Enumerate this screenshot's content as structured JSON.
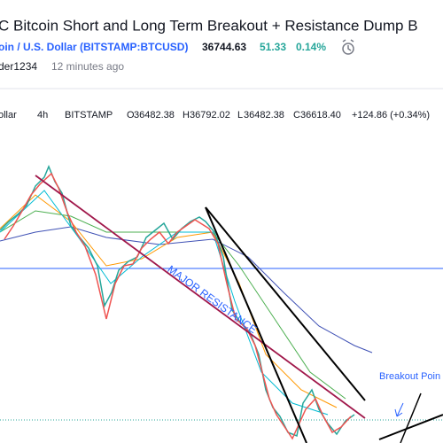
{
  "header": {
    "title": "C Bitcoin Short and Long Term Breakout + Resistance Dump B",
    "symbol": "oin / U.S. Dollar (BITSTAMP:BTCUSD)",
    "price": "36744.63",
    "change": "51.33",
    "change_pct": "0.14%",
    "author": "der1234",
    "time": "12 minutes ago"
  },
  "legend": {
    "symbol": "ollar",
    "interval": "4h",
    "exchange": "BITSTAMP",
    "open_label": "O",
    "open": "36482.38",
    "high_label": "H",
    "high": "36792.02",
    "low_label": "L",
    "low": "36482.38",
    "close_label": "C",
    "close": "36618.40",
    "change": "+124.86 (+0.34%)"
  },
  "annotations": {
    "resistance": "MAJOR RESISTANCE",
    "breakout": "Breakout Poin"
  }
}
